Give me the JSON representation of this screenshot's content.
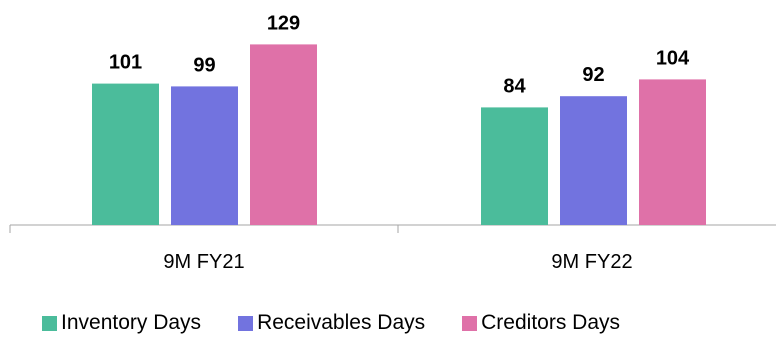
{
  "chart_data": {
    "type": "bar",
    "categories": [
      "9M FY21",
      "9M FY22"
    ],
    "series": [
      {
        "name": "Inventory Days",
        "values": [
          101,
          84
        ],
        "color": "#4BBC9B"
      },
      {
        "name": "Receivables Days",
        "values": [
          99,
          92
        ],
        "color": "#7273DF"
      },
      {
        "name": "Creditors Days",
        "values": [
          129,
          104
        ],
        "color": "#DF71A8"
      }
    ],
    "ylim": [
      0,
      140
    ],
    "grid": false,
    "data_labels": true,
    "legend_position": "bottom"
  }
}
